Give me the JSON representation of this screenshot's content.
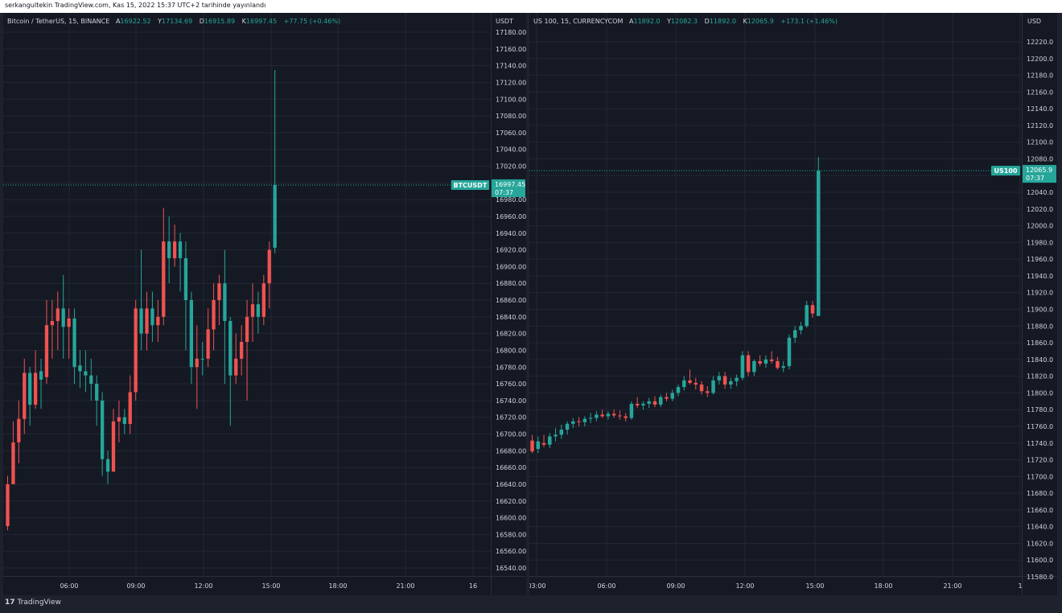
{
  "header": {
    "publish_text": "serkangultekin TradingView.com, Kas 15, 2022 15:37 UTC+2 tarihinde yayınlandı"
  },
  "colors": {
    "up": "#26a69a",
    "down": "#ef5350",
    "background": "#151924",
    "grid": "#222733",
    "text": "#d1d4dc",
    "price_line": "#26a69a"
  },
  "charts": [
    {
      "symbol_line": "Bitcoin / TetherUS, 15, BINANCE",
      "ohlc": [
        {
          "label": "A",
          "value": "16922.52"
        },
        {
          "label": "Y",
          "value": "17134.69"
        },
        {
          "label": "D",
          "value": "16915.89"
        },
        {
          "label": "K",
          "value": "16997.45"
        },
        {
          "label": "",
          "value": "+77.75 (+0.46%)"
        }
      ],
      "currency": "USDT",
      "ticker_badge": "BTCUSDT",
      "last_price": "16997.45",
      "countdown": "07:37",
      "price_ticks": [
        "17180.00",
        "17160.00",
        "17140.00",
        "17120.00",
        "17100.00",
        "17080.00",
        "17060.00",
        "17040.00",
        "17020.00",
        "16980.00",
        "16960.00",
        "16940.00",
        "16920.00",
        "16900.00",
        "16880.00",
        "16860.00",
        "16840.00",
        "16820.00",
        "16800.00",
        "16780.00",
        "16760.00",
        "16740.00",
        "16720.00",
        "16700.00",
        "16680.00",
        "16660.00",
        "16640.00",
        "16620.00",
        "16600.00",
        "16580.00",
        "16560.00",
        "16540.00"
      ],
      "time_ticks": [
        "06:00",
        "09:00",
        "12:00",
        "15:00",
        "18:00",
        "21:00",
        "16"
      ]
    },
    {
      "symbol_line": "US 100, 15, CURRENCYCOM",
      "ohlc": [
        {
          "label": "A",
          "value": "11892.0"
        },
        {
          "label": "Y",
          "value": "12082.3"
        },
        {
          "label": "D",
          "value": "11892.0"
        },
        {
          "label": "K",
          "value": "12065.9"
        },
        {
          "label": "",
          "value": "+173.1 (+1.46%)"
        }
      ],
      "currency": "USD",
      "ticker_badge": "US100",
      "last_price": "12065.9",
      "countdown": "07:37",
      "price_ticks": [
        "12220.0",
        "12200.0",
        "12180.0",
        "12160.0",
        "12140.0",
        "12120.0",
        "12100.0",
        "12080.0",
        "12040.0",
        "12020.0",
        "12000.0",
        "11980.0",
        "11960.0",
        "11940.0",
        "11920.0",
        "11900.0",
        "11880.0",
        "11860.0",
        "11840.0",
        "11820.0",
        "11800.0",
        "11780.0",
        "11760.0",
        "11740.0",
        "11720.0",
        "11700.0",
        "11680.0",
        "11660.0",
        "11640.0",
        "11620.0",
        "11600.0",
        "11580.0"
      ],
      "time_ticks": [
        "03:00",
        "06:00",
        "09:00",
        "12:00",
        "15:00",
        "18:00",
        "21:00",
        "1"
      ]
    }
  ],
  "chart_data": [
    {
      "type": "candlestick",
      "title": "Bitcoin / TetherUS, 15, BINANCE",
      "ylabel": "USDT",
      "ylim": [
        16530,
        17190
      ],
      "x_start": "04:00",
      "interval_minutes": 15,
      "grid": true,
      "candles": [
        {
          "o": 16640,
          "h": 16650,
          "l": 16585,
          "c": 16590
        },
        {
          "o": 16690,
          "h": 16715,
          "l": 16645,
          "c": 16640
        },
        {
          "o": 16718,
          "h": 16740,
          "l": 16665,
          "c": 16690
        },
        {
          "o": 16773,
          "h": 16790,
          "l": 16700,
          "c": 16718
        },
        {
          "o": 16735,
          "h": 16780,
          "l": 16710,
          "c": 16773
        },
        {
          "o": 16773,
          "h": 16800,
          "l": 16730,
          "c": 16735
        },
        {
          "o": 16765,
          "h": 16790,
          "l": 16730,
          "c": 16775
        },
        {
          "o": 16830,
          "h": 16860,
          "l": 16760,
          "c": 16768
        },
        {
          "o": 16835,
          "h": 16860,
          "l": 16790,
          "c": 16830
        },
        {
          "o": 16850,
          "h": 16870,
          "l": 16800,
          "c": 16835
        },
        {
          "o": 16828,
          "h": 16890,
          "l": 16790,
          "c": 16850
        },
        {
          "o": 16838,
          "h": 16850,
          "l": 16790,
          "c": 16828
        },
        {
          "o": 16780,
          "h": 16850,
          "l": 16760,
          "c": 16838
        },
        {
          "o": 16775,
          "h": 16800,
          "l": 16755,
          "c": 16782
        },
        {
          "o": 16770,
          "h": 16800,
          "l": 16750,
          "c": 16775
        },
        {
          "o": 16760,
          "h": 16790,
          "l": 16740,
          "c": 16770
        },
        {
          "o": 16740,
          "h": 16770,
          "l": 16710,
          "c": 16760
        },
        {
          "o": 16670,
          "h": 16750,
          "l": 16650,
          "c": 16740
        },
        {
          "o": 16655,
          "h": 16680,
          "l": 16640,
          "c": 16670
        },
        {
          "o": 16715,
          "h": 16730,
          "l": 16660,
          "c": 16655
        },
        {
          "o": 16720,
          "h": 16740,
          "l": 16690,
          "c": 16715
        },
        {
          "o": 16712,
          "h": 16730,
          "l": 16700,
          "c": 16720
        },
        {
          "o": 16750,
          "h": 16770,
          "l": 16700,
          "c": 16712
        },
        {
          "o": 16850,
          "h": 16860,
          "l": 16740,
          "c": 16750
        },
        {
          "o": 16820,
          "h": 16920,
          "l": 16800,
          "c": 16850
        },
        {
          "o": 16850,
          "h": 16870,
          "l": 16800,
          "c": 16820
        },
        {
          "o": 16830,
          "h": 16870,
          "l": 16810,
          "c": 16850
        },
        {
          "o": 16840,
          "h": 16860,
          "l": 16810,
          "c": 16830
        },
        {
          "o": 16930,
          "h": 16970,
          "l": 16830,
          "c": 16840
        },
        {
          "o": 16910,
          "h": 16960,
          "l": 16880,
          "c": 16930
        },
        {
          "o": 16930,
          "h": 16950,
          "l": 16900,
          "c": 16910
        },
        {
          "o": 16910,
          "h": 16940,
          "l": 16870,
          "c": 16930
        },
        {
          "o": 16860,
          "h": 16930,
          "l": 16800,
          "c": 16910
        },
        {
          "o": 16780,
          "h": 16870,
          "l": 16760,
          "c": 16860
        },
        {
          "o": 16790,
          "h": 16830,
          "l": 16730,
          "c": 16780
        },
        {
          "o": 16790,
          "h": 16810,
          "l": 16770,
          "c": 16790
        },
        {
          "o": 16825,
          "h": 16850,
          "l": 16780,
          "c": 16790
        },
        {
          "o": 16860,
          "h": 16880,
          "l": 16800,
          "c": 16825
        },
        {
          "o": 16880,
          "h": 16890,
          "l": 16830,
          "c": 16860
        },
        {
          "o": 16835,
          "h": 16920,
          "l": 16760,
          "c": 16880
        },
        {
          "o": 16770,
          "h": 16840,
          "l": 16710,
          "c": 16835
        },
        {
          "o": 16790,
          "h": 16820,
          "l": 16760,
          "c": 16770
        },
        {
          "o": 16810,
          "h": 16830,
          "l": 16770,
          "c": 16790
        },
        {
          "o": 16840,
          "h": 16860,
          "l": 16740,
          "c": 16810
        },
        {
          "o": 16855,
          "h": 16880,
          "l": 16810,
          "c": 16840
        },
        {
          "o": 16840,
          "h": 16870,
          "l": 16820,
          "c": 16855
        },
        {
          "o": 16880,
          "h": 16890,
          "l": 16830,
          "c": 16840
        },
        {
          "o": 16920,
          "h": 16930,
          "l": 16850,
          "c": 16880
        },
        {
          "o": 16922.52,
          "h": 17134.69,
          "l": 16915.89,
          "c": 16997.45
        }
      ]
    },
    {
      "type": "candlestick",
      "title": "US 100, 15, CURRENCYCOM",
      "ylabel": "USD",
      "ylim": [
        11578,
        12232
      ],
      "x_start": "02:45",
      "interval_minutes": 15,
      "grid": true,
      "candles": [
        {
          "o": 11743,
          "h": 11750,
          "l": 11728,
          "c": 11730
        },
        {
          "o": 11733,
          "h": 11748,
          "l": 11728,
          "c": 11742
        },
        {
          "o": 11740,
          "h": 11750,
          "l": 11735,
          "c": 11738
        },
        {
          "o": 11738,
          "h": 11752,
          "l": 11734,
          "c": 11748
        },
        {
          "o": 11748,
          "h": 11758,
          "l": 11742,
          "c": 11750
        },
        {
          "o": 11750,
          "h": 11762,
          "l": 11745,
          "c": 11756
        },
        {
          "o": 11756,
          "h": 11766,
          "l": 11750,
          "c": 11763
        },
        {
          "o": 11763,
          "h": 11770,
          "l": 11758,
          "c": 11766
        },
        {
          "o": 11766,
          "h": 11771,
          "l": 11760,
          "c": 11765
        },
        {
          "o": 11765,
          "h": 11772,
          "l": 11760,
          "c": 11769
        },
        {
          "o": 11769,
          "h": 11776,
          "l": 11764,
          "c": 11770
        },
        {
          "o": 11770,
          "h": 11778,
          "l": 11766,
          "c": 11774
        },
        {
          "o": 11774,
          "h": 11780,
          "l": 11770,
          "c": 11772
        },
        {
          "o": 11772,
          "h": 11778,
          "l": 11768,
          "c": 11775
        },
        {
          "o": 11775,
          "h": 11780,
          "l": 11770,
          "c": 11773
        },
        {
          "o": 11773,
          "h": 11779,
          "l": 11768,
          "c": 11772
        },
        {
          "o": 11772,
          "h": 11776,
          "l": 11766,
          "c": 11770
        },
        {
          "o": 11770,
          "h": 11790,
          "l": 11768,
          "c": 11787
        },
        {
          "o": 11787,
          "h": 11795,
          "l": 11782,
          "c": 11785
        },
        {
          "o": 11785,
          "h": 11790,
          "l": 11780,
          "c": 11787
        },
        {
          "o": 11787,
          "h": 11794,
          "l": 11782,
          "c": 11790
        },
        {
          "o": 11790,
          "h": 11796,
          "l": 11783,
          "c": 11786
        },
        {
          "o": 11786,
          "h": 11798,
          "l": 11783,
          "c": 11795
        },
        {
          "o": 11795,
          "h": 11800,
          "l": 11790,
          "c": 11793
        },
        {
          "o": 11793,
          "h": 11804,
          "l": 11790,
          "c": 11800
        },
        {
          "o": 11800,
          "h": 11810,
          "l": 11796,
          "c": 11807
        },
        {
          "o": 11807,
          "h": 11820,
          "l": 11803,
          "c": 11815
        },
        {
          "o": 11815,
          "h": 11828,
          "l": 11810,
          "c": 11812
        },
        {
          "o": 11812,
          "h": 11818,
          "l": 11804,
          "c": 11810
        },
        {
          "o": 11810,
          "h": 11814,
          "l": 11798,
          "c": 11802
        },
        {
          "o": 11802,
          "h": 11808,
          "l": 11795,
          "c": 11800
        },
        {
          "o": 11800,
          "h": 11820,
          "l": 11798,
          "c": 11815
        },
        {
          "o": 11815,
          "h": 11825,
          "l": 11810,
          "c": 11820
        },
        {
          "o": 11820,
          "h": 11825,
          "l": 11805,
          "c": 11810
        },
        {
          "o": 11810,
          "h": 11818,
          "l": 11805,
          "c": 11814
        },
        {
          "o": 11814,
          "h": 11822,
          "l": 11808,
          "c": 11818
        },
        {
          "o": 11818,
          "h": 11850,
          "l": 11815,
          "c": 11845
        },
        {
          "o": 11845,
          "h": 11850,
          "l": 11820,
          "c": 11825
        },
        {
          "o": 11825,
          "h": 11840,
          "l": 11820,
          "c": 11838
        },
        {
          "o": 11838,
          "h": 11845,
          "l": 11832,
          "c": 11835
        },
        {
          "o": 11835,
          "h": 11845,
          "l": 11830,
          "c": 11840
        },
        {
          "o": 11840,
          "h": 11850,
          "l": 11835,
          "c": 11838
        },
        {
          "o": 11838,
          "h": 11843,
          "l": 11828,
          "c": 11830
        },
        {
          "o": 11830,
          "h": 11838,
          "l": 11825,
          "c": 11832
        },
        {
          "o": 11832,
          "h": 11870,
          "l": 11828,
          "c": 11866
        },
        {
          "o": 11866,
          "h": 11880,
          "l": 11860,
          "c": 11875
        },
        {
          "o": 11875,
          "h": 11885,
          "l": 11870,
          "c": 11880
        },
        {
          "o": 11880,
          "h": 11910,
          "l": 11878,
          "c": 11905
        },
        {
          "o": 11905,
          "h": 11910,
          "l": 11890,
          "c": 11895
        },
        {
          "o": 11892,
          "h": 12082.3,
          "l": 11892,
          "c": 12065.9
        }
      ]
    }
  ]
}
